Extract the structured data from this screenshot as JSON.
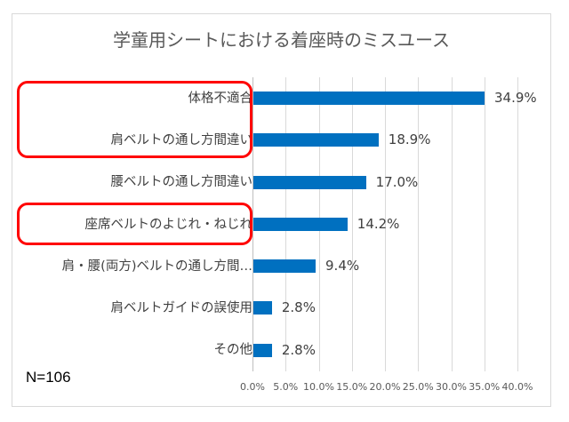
{
  "chart_data": {
    "type": "bar",
    "orientation": "horizontal",
    "title": "学童用シートにおける着座時のミスユース",
    "categories": [
      "体格不適合",
      "肩ベルトの通し方間違い",
      "腰ベルトの通し方間違い",
      "座席ベルトのよじれ・ねじれ",
      "肩・腰(両方)ベルトの通し方間…",
      "肩ベルトガイドの誤使用",
      "その他"
    ],
    "values": [
      34.9,
      18.9,
      17.0,
      14.2,
      9.4,
      2.8,
      2.8
    ],
    "value_labels": [
      "34.9%",
      "18.9%",
      "17.0%",
      "14.2%",
      "9.4%",
      "2.8%",
      "2.8%"
    ],
    "xlabel": "",
    "ylabel": "",
    "xlim": [
      0,
      40
    ],
    "x_ticks": [
      "0.0%",
      "5.0%",
      "10.0%",
      "15.0%",
      "20.0%",
      "25.0%",
      "30.0%",
      "35.0%",
      "40.0%"
    ],
    "grid": true,
    "legend": null,
    "bar_color": "#0070C0",
    "annotations": [
      {
        "text": "N=106",
        "position": "bottom-left"
      },
      {
        "type": "highlight-box",
        "color": "#FF0000",
        "covers": [
          "体格不適合",
          "肩ベルトの通し方間違い"
        ]
      },
      {
        "type": "highlight-box",
        "color": "#FF0000",
        "covers": [
          "座席ベルトのよじれ・ねじれ"
        ]
      }
    ]
  },
  "chart": {
    "title": "学童用シートにおける着座時のミスユース",
    "sample_size": "N=106"
  }
}
